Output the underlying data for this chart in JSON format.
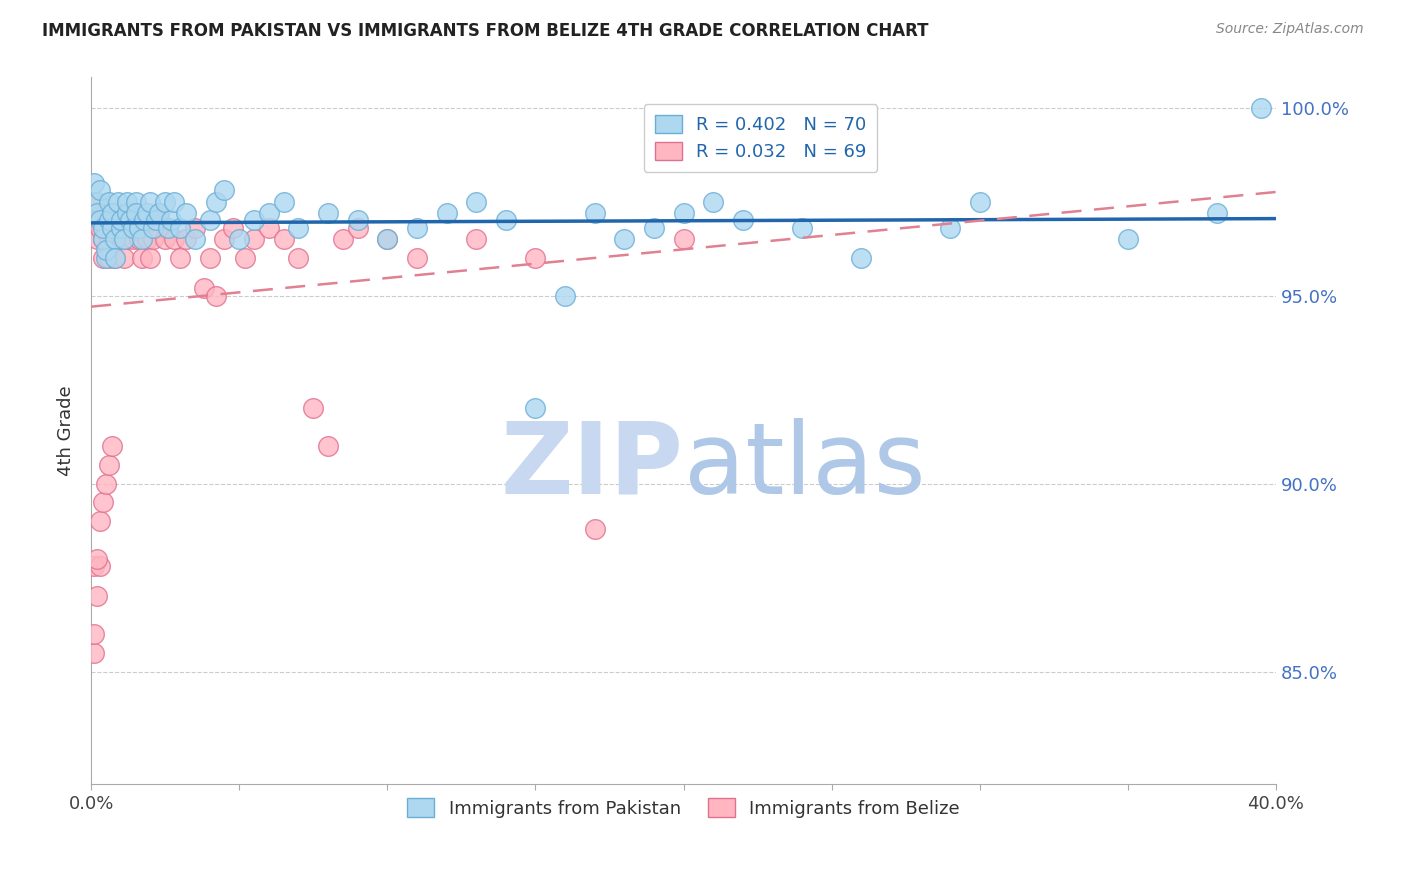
{
  "title": "IMMIGRANTS FROM PAKISTAN VS IMMIGRANTS FROM BELIZE 4TH GRADE CORRELATION CHART",
  "source": "Source: ZipAtlas.com",
  "ylabel": "4th Grade",
  "xlim": [
    0.0,
    0.4
  ],
  "ylim": [
    0.82,
    1.008
  ],
  "xticks": [
    0.0,
    0.05,
    0.1,
    0.15,
    0.2,
    0.25,
    0.3,
    0.35,
    0.4
  ],
  "xticklabels": [
    "0.0%",
    "",
    "",
    "",
    "",
    "",
    "",
    "",
    "40.0%"
  ],
  "yticks": [
    0.85,
    0.9,
    0.95,
    1.0
  ],
  "yticklabels": [
    "85.0%",
    "90.0%",
    "95.0%",
    "100.0%"
  ],
  "pakistan_face": "#add8f0",
  "pakistan_edge": "#6aaed6",
  "belize_face": "#ffb6c1",
  "belize_edge": "#e07090",
  "trendline_pakistan_color": "#2166ac",
  "trendline_belize_color": "#e08090",
  "R_pakistan": 0.402,
  "N_pakistan": 70,
  "R_belize": 0.032,
  "N_belize": 69,
  "watermark_zip_color": "#c8d8f0",
  "watermark_atlas_color": "#b0c8e8",
  "pakistan_x": [
    0.001,
    0.002,
    0.002,
    0.003,
    0.003,
    0.004,
    0.004,
    0.005,
    0.005,
    0.006,
    0.006,
    0.007,
    0.007,
    0.008,
    0.008,
    0.009,
    0.01,
    0.01,
    0.011,
    0.012,
    0.012,
    0.013,
    0.014,
    0.015,
    0.015,
    0.016,
    0.017,
    0.018,
    0.019,
    0.02,
    0.021,
    0.022,
    0.023,
    0.025,
    0.026,
    0.027,
    0.028,
    0.03,
    0.032,
    0.035,
    0.04,
    0.042,
    0.045,
    0.05,
    0.055,
    0.06,
    0.065,
    0.07,
    0.08,
    0.09,
    0.1,
    0.11,
    0.12,
    0.13,
    0.14,
    0.15,
    0.16,
    0.17,
    0.18,
    0.19,
    0.2,
    0.21,
    0.22,
    0.24,
    0.26,
    0.29,
    0.3,
    0.35,
    0.38,
    0.395
  ],
  "pakistan_y": [
    0.98,
    0.975,
    0.972,
    0.978,
    0.97,
    0.965,
    0.968,
    0.96,
    0.962,
    0.97,
    0.975,
    0.968,
    0.972,
    0.965,
    0.96,
    0.975,
    0.968,
    0.97,
    0.965,
    0.972,
    0.975,
    0.97,
    0.968,
    0.975,
    0.972,
    0.968,
    0.965,
    0.97,
    0.972,
    0.975,
    0.968,
    0.97,
    0.972,
    0.975,
    0.968,
    0.97,
    0.975,
    0.968,
    0.972,
    0.965,
    0.97,
    0.975,
    0.978,
    0.965,
    0.97,
    0.972,
    0.975,
    0.968,
    0.972,
    0.97,
    0.965,
    0.968,
    0.972,
    0.975,
    0.97,
    0.92,
    0.95,
    0.972,
    0.965,
    0.968,
    0.972,
    0.975,
    0.97,
    0.968,
    0.96,
    0.968,
    0.975,
    0.965,
    0.972,
    1.0
  ],
  "belize_x": [
    0.001,
    0.001,
    0.002,
    0.002,
    0.003,
    0.003,
    0.004,
    0.004,
    0.005,
    0.005,
    0.006,
    0.006,
    0.007,
    0.007,
    0.008,
    0.008,
    0.009,
    0.009,
    0.01,
    0.01,
    0.011,
    0.012,
    0.012,
    0.013,
    0.014,
    0.015,
    0.016,
    0.017,
    0.018,
    0.019,
    0.02,
    0.021,
    0.022,
    0.023,
    0.025,
    0.026,
    0.028,
    0.03,
    0.032,
    0.035,
    0.038,
    0.04,
    0.042,
    0.045,
    0.048,
    0.052,
    0.055,
    0.06,
    0.065,
    0.07,
    0.075,
    0.08,
    0.085,
    0.09,
    0.1,
    0.11,
    0.13,
    0.15,
    0.17,
    0.2,
    0.001,
    0.001,
    0.002,
    0.002,
    0.003,
    0.004,
    0.005,
    0.006,
    0.007
  ],
  "belize_y": [
    0.975,
    0.878,
    0.97,
    0.965,
    0.878,
    0.968,
    0.965,
    0.96,
    0.968,
    0.972,
    0.965,
    0.96,
    0.968,
    0.972,
    0.965,
    0.96,
    0.968,
    0.972,
    0.965,
    0.968,
    0.96,
    0.965,
    0.968,
    0.972,
    0.965,
    0.968,
    0.965,
    0.96,
    0.968,
    0.965,
    0.96,
    0.965,
    0.968,
    0.972,
    0.965,
    0.968,
    0.965,
    0.96,
    0.965,
    0.968,
    0.952,
    0.96,
    0.95,
    0.965,
    0.968,
    0.96,
    0.965,
    0.968,
    0.965,
    0.96,
    0.92,
    0.91,
    0.965,
    0.968,
    0.965,
    0.96,
    0.965,
    0.96,
    0.888,
    0.965,
    0.855,
    0.86,
    0.87,
    0.88,
    0.89,
    0.895,
    0.9,
    0.905,
    0.91
  ]
}
